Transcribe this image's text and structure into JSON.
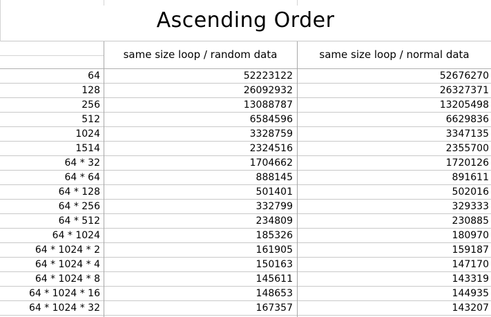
{
  "title": "Ascending Order",
  "columns": [
    "same size loop / random data",
    "same size loop / normal data"
  ],
  "rows": [
    {
      "key": "64",
      "random": "52223122",
      "normal": "52676270"
    },
    {
      "key": "128",
      "random": "26092932",
      "normal": "26327371"
    },
    {
      "key": "256",
      "random": "13088787",
      "normal": "13205498"
    },
    {
      "key": "512",
      "random": "6584596",
      "normal": "6629836"
    },
    {
      "key": "1024",
      "random": "3328759",
      "normal": "3347135"
    },
    {
      "key": "1514",
      "random": "2324516",
      "normal": "2355700"
    },
    {
      "key": "64 * 32",
      "random": "1704662",
      "normal": "1720126"
    },
    {
      "key": "64 * 64",
      "random": "888145",
      "normal": "891611"
    },
    {
      "key": "64 * 128",
      "random": "501401",
      "normal": "502016"
    },
    {
      "key": "64 * 256",
      "random": "332799",
      "normal": "329333"
    },
    {
      "key": "64 * 512",
      "random": "234809",
      "normal": "230885"
    },
    {
      "key": "64 * 1024",
      "random": "185326",
      "normal": "180970"
    },
    {
      "key": "64 * 1024 * 2",
      "random": "161905",
      "normal": "159187"
    },
    {
      "key": "64 * 1024 * 4",
      "random": "150163",
      "normal": "147170"
    },
    {
      "key": "64 * 1024 * 8",
      "random": "145611",
      "normal": "143319"
    },
    {
      "key": "64 * 1024 * 16",
      "random": "148653",
      "normal": "144935"
    },
    {
      "key": "64 * 1024 * 32",
      "random": "167357",
      "normal": "143207"
    }
  ]
}
